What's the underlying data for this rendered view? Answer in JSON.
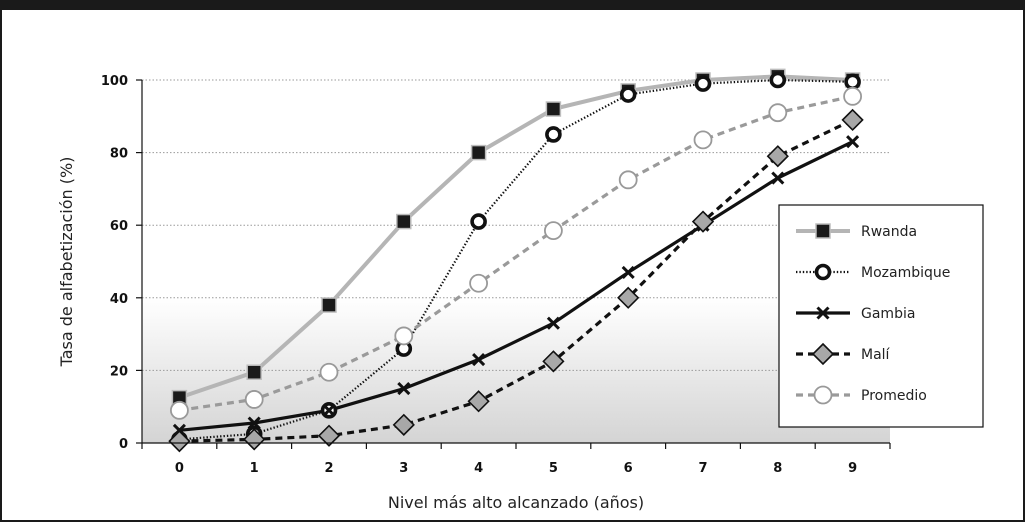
{
  "chart_data": {
    "type": "line",
    "xlabel": "Nivel más alto alcanzado (años)",
    "ylabel": "Tasa de alfabetización (%)",
    "x": [
      0,
      1,
      2,
      3,
      4,
      5,
      6,
      7,
      8,
      9
    ],
    "ylim": [
      0,
      100
    ],
    "yticks": [
      0,
      20,
      40,
      60,
      80,
      100
    ],
    "grid": "horizontal-dotted",
    "legend_position": "right",
    "series": [
      {
        "name": "Rwanda",
        "values": [
          12.5,
          19.5,
          38,
          61,
          80,
          92,
          97,
          100,
          101,
          100
        ],
        "color": "#b5b5b5",
        "marker": "square",
        "line": "solid"
      },
      {
        "name": "Mozambique",
        "values": [
          1,
          2.5,
          9,
          26,
          61,
          85,
          96,
          99,
          100,
          99.5
        ],
        "color": "#111111",
        "marker": "ring",
        "line": "dotted"
      },
      {
        "name": "Gambia",
        "values": [
          3.5,
          5.5,
          9,
          15,
          23,
          33,
          47,
          60,
          73,
          83
        ],
        "color": "#111111",
        "marker": "cross",
        "line": "solid"
      },
      {
        "name": "Malí",
        "values": [
          0.5,
          1,
          2,
          5,
          11.5,
          22.5,
          40,
          61,
          79,
          89
        ],
        "color": "#111111",
        "marker": "diamond",
        "line": "dashed"
      },
      {
        "name": "Promedio",
        "values": [
          9,
          12,
          19.5,
          29.5,
          44,
          58.5,
          72.5,
          83.5,
          91,
          95.5
        ],
        "color": "#9a9a9a",
        "marker": "circle-open",
        "line": "dashed"
      }
    ]
  }
}
